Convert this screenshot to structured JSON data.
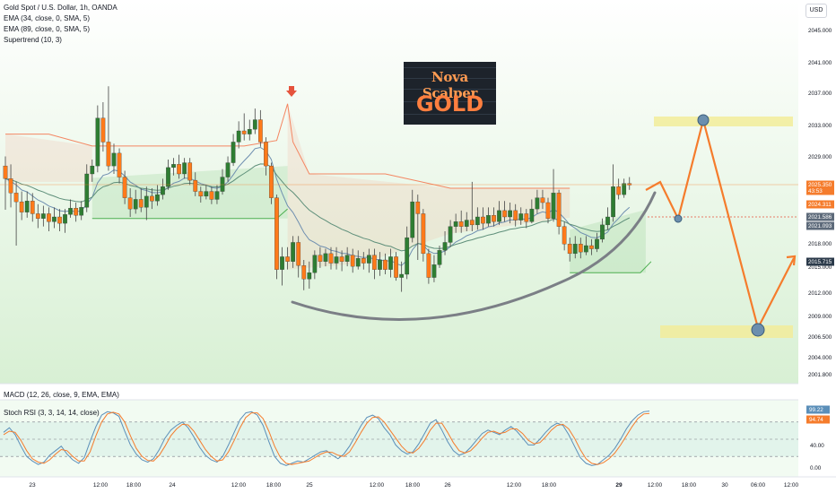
{
  "header": {
    "legend": [
      "Gold Spot / U.S. Dollar, 1h, OANDA",
      "EMA (34, close, 0, SMA, 5)",
      "EMA (89, close, 0, SMA, 5)",
      "Supertrend (10, 3)"
    ],
    "currency": "USD"
  },
  "badge": {
    "line1": "Nova Scalper",
    "line2": "GOLD"
  },
  "panes": {
    "macd_label": "MACD (12, 26, close, 9, EMA, EMA)",
    "stoch_label": "Stoch RSI (3, 3, 14, 14, close)"
  },
  "colors": {
    "up": "#26a69a",
    "down": "#ff7a1a",
    "up_fill": "#2e7d32",
    "supertrend_up": "#4caf50",
    "supertrend_down": "#f48662",
    "ema34": "#6f8fb0",
    "ema89": "#5e8f7a",
    "projection": "#f57c2c",
    "zone": "#f2ec9a",
    "stoch_k": "#5b8fb9",
    "stoch_d": "#f57c2c"
  },
  "chart_data": [
    {
      "type": "candlestick",
      "title": "Gold Spot / U.S. Dollar, 1h, OANDA",
      "y_ticks": [
        "2045.000",
        "2041.000",
        "2037.000",
        "2033.000",
        "2029.000",
        "2025.350",
        "2021.586",
        "2018.000",
        "2015.000",
        "2012.000",
        "2009.000",
        "2006.500",
        "2004.000",
        "2001.800"
      ],
      "x_ticks": [
        "23",
        "12:00",
        "18:00",
        "24",
        "12:00",
        "18:00",
        "25",
        "12:00",
        "18:00",
        "26",
        "12:00",
        "18:00",
        "29",
        "12:00",
        "18:00",
        "30",
        "06:00",
        "12:00"
      ],
      "price_tags": [
        {
          "value": "2025.350",
          "sub": "43:53",
          "color": "#f57c2c"
        },
        {
          "value": "2024.311",
          "sub": "",
          "color": "#f57c2c"
        },
        {
          "value": "2021.586",
          "sub": "",
          "color": "#5d6a7a"
        },
        {
          "value": "2021.093",
          "sub": "",
          "color": "#5d6a7a"
        },
        {
          "value": "2015.715",
          "sub": "",
          "color": "#2b3a4a"
        }
      ],
      "candles": [
        [
          2028.0,
          2026.4,
          2029.2,
          2022.5
        ],
        [
          2026.4,
          2024.6,
          2028.2,
          2022.8
        ],
        [
          2024.6,
          2023.5,
          2026.0,
          2018.0
        ],
        [
          2023.5,
          2022.2,
          2024.8,
          2021.2
        ],
        [
          2022.2,
          2023.6,
          2024.8,
          2021.5
        ],
        [
          2023.6,
          2022.0,
          2024.6,
          2021.0
        ],
        [
          2022.0,
          2021.4,
          2023.2,
          2020.2
        ],
        [
          2021.4,
          2022.0,
          2023.0,
          2020.4
        ],
        [
          2022.0,
          2021.0,
          2022.8,
          2019.8
        ],
        [
          2021.0,
          2021.6,
          2022.8,
          2020.2
        ],
        [
          2021.6,
          2020.8,
          2022.6,
          2019.8
        ],
        [
          2020.8,
          2021.9,
          2022.6,
          2019.6
        ],
        [
          2021.9,
          2022.7,
          2023.8,
          2021.5
        ],
        [
          2022.7,
          2021.8,
          2023.4,
          2021.0
        ],
        [
          2021.8,
          2022.8,
          2023.6,
          2021.2
        ],
        [
          2022.8,
          2027.0,
          2028.2,
          2022.2
        ],
        [
          2027.0,
          2028.0,
          2028.8,
          2026.0
        ],
        [
          2028.0,
          2034.0,
          2035.6,
          2027.2
        ],
        [
          2034.0,
          2031.0,
          2036.0,
          2029.8
        ],
        [
          2031.0,
          2028.0,
          2038.0,
          2027.4
        ],
        [
          2028.0,
          2029.6,
          2030.8,
          2027.0
        ],
        [
          2029.6,
          2026.6,
          2030.2,
          2025.8
        ],
        [
          2026.6,
          2024.0,
          2027.4,
          2023.2
        ],
        [
          2024.0,
          2022.6,
          2025.2,
          2021.6
        ],
        [
          2022.6,
          2023.8,
          2025.0,
          2022.0
        ],
        [
          2023.8,
          2022.8,
          2025.2,
          2022.2
        ],
        [
          2022.8,
          2024.2,
          2025.4,
          2021.2
        ],
        [
          2024.2,
          2023.6,
          2025.2,
          2022.6
        ],
        [
          2023.6,
          2024.4,
          2025.6,
          2023.0
        ],
        [
          2024.4,
          2025.4,
          2026.4,
          2023.8
        ],
        [
          2025.4,
          2027.8,
          2028.8,
          2025.0
        ],
        [
          2027.8,
          2028.2,
          2029.0,
          2026.8
        ],
        [
          2028.2,
          2027.0,
          2029.4,
          2026.4
        ],
        [
          2027.0,
          2028.4,
          2029.0,
          2026.4
        ],
        [
          2028.4,
          2026.2,
          2029.0,
          2025.6
        ],
        [
          2026.2,
          2024.8,
          2027.2,
          2024.2
        ],
        [
          2024.8,
          2024.2,
          2025.4,
          2023.4
        ],
        [
          2024.2,
          2024.8,
          2025.6,
          2023.8
        ],
        [
          2024.8,
          2023.8,
          2025.4,
          2023.2
        ],
        [
          2023.8,
          2024.8,
          2025.6,
          2023.2
        ],
        [
          2024.8,
          2026.6,
          2027.6,
          2024.4
        ],
        [
          2026.6,
          2028.4,
          2029.2,
          2026.0
        ],
        [
          2028.4,
          2031.0,
          2032.0,
          2028.0
        ],
        [
          2031.0,
          2032.4,
          2033.6,
          2030.2
        ],
        [
          2032.4,
          2032.0,
          2034.6,
          2031.2
        ],
        [
          2032.0,
          2032.6,
          2033.8,
          2031.2
        ],
        [
          2032.6,
          2033.8,
          2035.2,
          2032.0
        ],
        [
          2033.8,
          2031.0,
          2035.0,
          2030.4
        ],
        [
          2031.0,
          2028.0,
          2031.6,
          2026.8
        ],
        [
          2028.0,
          2024.0,
          2028.4,
          2023.2
        ],
        [
          2024.0,
          2015.0,
          2024.4,
          2013.8
        ],
        [
          2015.0,
          2016.6,
          2017.8,
          2013.0
        ],
        [
          2016.6,
          2016.0,
          2017.8,
          2015.0
        ],
        [
          2016.0,
          2018.4,
          2019.2,
          2015.2
        ],
        [
          2018.4,
          2015.5,
          2019.2,
          2014.0
        ],
        [
          2015.5,
          2013.8,
          2016.2,
          2012.4
        ],
        [
          2013.8,
          2014.6,
          2016.0,
          2012.6
        ],
        [
          2014.6,
          2016.8,
          2017.4,
          2013.8
        ],
        [
          2016.8,
          2016.0,
          2017.8,
          2015.2
        ],
        [
          2016.0,
          2017.0,
          2017.6,
          2015.4
        ],
        [
          2017.0,
          2015.8,
          2017.8,
          2015.0
        ],
        [
          2015.8,
          2016.6,
          2017.8,
          2015.0
        ],
        [
          2016.6,
          2016.0,
          2017.4,
          2014.8
        ],
        [
          2016.0,
          2016.8,
          2017.8,
          2015.4
        ],
        [
          2016.8,
          2015.4,
          2017.6,
          2014.6
        ],
        [
          2015.4,
          2016.4,
          2017.4,
          2015.0
        ],
        [
          2016.4,
          2015.8,
          2017.2,
          2015.0
        ],
        [
          2015.8,
          2016.8,
          2017.6,
          2014.6
        ],
        [
          2016.8,
          2015.0,
          2017.6,
          2013.8
        ],
        [
          2015.0,
          2016.2,
          2017.2,
          2014.2
        ],
        [
          2016.2,
          2015.0,
          2017.0,
          2014.4
        ],
        [
          2015.0,
          2016.6,
          2017.6,
          2014.0
        ],
        [
          2016.6,
          2014.0,
          2017.2,
          2013.6
        ],
        [
          2014.0,
          2014.4,
          2016.0,
          2012.2
        ],
        [
          2014.4,
          2019.0,
          2020.4,
          2013.8
        ],
        [
          2019.0,
          2023.5,
          2025.0,
          2018.4
        ],
        [
          2023.5,
          2022.0,
          2024.4,
          2016.2
        ],
        [
          2022.0,
          2017.0,
          2022.6,
          2016.0
        ],
        [
          2017.0,
          2014.0,
          2017.6,
          2013.2
        ],
        [
          2014.0,
          2015.6,
          2016.8,
          2013.4
        ],
        [
          2015.6,
          2017.4,
          2018.0,
          2015.2
        ],
        [
          2017.4,
          2018.4,
          2019.8,
          2016.8
        ],
        [
          2018.4,
          2020.4,
          2021.2,
          2017.8
        ],
        [
          2020.4,
          2021.0,
          2022.0,
          2019.6
        ],
        [
          2021.0,
          2020.4,
          2022.4,
          2019.6
        ],
        [
          2020.4,
          2021.2,
          2022.2,
          2019.8
        ],
        [
          2021.2,
          2020.6,
          2026.0,
          2019.8
        ],
        [
          2020.6,
          2021.6,
          2022.8,
          2020.0
        ],
        [
          2021.6,
          2020.8,
          2022.8,
          2020.0
        ],
        [
          2020.8,
          2021.8,
          2022.8,
          2020.4
        ],
        [
          2021.8,
          2021.0,
          2022.8,
          2020.4
        ],
        [
          2021.0,
          2022.4,
          2023.6,
          2020.6
        ],
        [
          2022.4,
          2021.6,
          2023.6,
          2021.0
        ],
        [
          2021.6,
          2022.4,
          2023.4,
          2020.8
        ],
        [
          2022.4,
          2021.2,
          2023.2,
          2020.4
        ],
        [
          2021.2,
          2022.0,
          2022.8,
          2020.6
        ],
        [
          2022.0,
          2021.0,
          2022.6,
          2020.2
        ],
        [
          2021.0,
          2022.6,
          2023.8,
          2020.8
        ],
        [
          2022.6,
          2024.0,
          2025.0,
          2022.0
        ],
        [
          2024.0,
          2023.4,
          2025.0,
          2022.6
        ],
        [
          2023.4,
          2021.4,
          2024.0,
          2020.8
        ],
        [
          2021.4,
          2024.6,
          2027.6,
          2021.0
        ],
        [
          2024.6,
          2020.4,
          2025.0,
          2019.4
        ],
        [
          2020.4,
          2018.2,
          2021.0,
          2017.4
        ],
        [
          2018.2,
          2017.0,
          2019.0,
          2016.0
        ],
        [
          2017.0,
          2018.2,
          2019.2,
          2016.4
        ],
        [
          2018.2,
          2017.2,
          2019.0,
          2016.4
        ],
        [
          2017.2,
          2018.0,
          2019.2,
          2016.8
        ],
        [
          2018.0,
          2017.6,
          2018.8,
          2016.8
        ],
        [
          2017.6,
          2018.8,
          2019.6,
          2017.2
        ],
        [
          2018.8,
          2020.6,
          2021.4,
          2018.4
        ],
        [
          2020.6,
          2021.6,
          2022.8,
          2020.0
        ],
        [
          2021.6,
          2025.4,
          2028.2,
          2021.0
        ],
        [
          2025.4,
          2024.4,
          2026.4,
          2023.8
        ],
        [
          2024.4,
          2025.8,
          2026.4,
          2024.0
        ],
        [
          2025.8,
          2025.6,
          2026.6,
          2025.0
        ]
      ]
    },
    {
      "type": "line",
      "title": "Stoch RSI (3, 3, 14, 14, close)",
      "ylim": [
        0,
        100
      ],
      "y_ticks": [
        "80.00",
        "40.00",
        "0.00"
      ],
      "value_tags": [
        {
          "value": "99.22",
          "color": "#5b8fb9"
        },
        {
          "value": "94.74",
          "color": "#f57c2c"
        }
      ],
      "series": [
        {
          "name": "K",
          "values": [
            62,
            70,
            58,
            38,
            20,
            12,
            6,
            10,
            22,
            30,
            38,
            24,
            14,
            8,
            18,
            46,
            72,
            92,
            98,
            96,
            90,
            64,
            40,
            24,
            14,
            10,
            16,
            32,
            52,
            66,
            74,
            80,
            70,
            54,
            36,
            22,
            14,
            10,
            20,
            40,
            62,
            84,
            96,
            98,
            92,
            74,
            46,
            20,
            8,
            4,
            8,
            12,
            10,
            16,
            22,
            28,
            30,
            22,
            16,
            24,
            38,
            56,
            74,
            88,
            92,
            86,
            70,
            58,
            40,
            30,
            24,
            28,
            42,
            60,
            78,
            84,
            66,
            46,
            30,
            22,
            26,
            36,
            48,
            60,
            66,
            62,
            58,
            66,
            72,
            64,
            52,
            40,
            40,
            50,
            62,
            72,
            78,
            74,
            58,
            38,
            18,
            8,
            4,
            6,
            14,
            22,
            34,
            50,
            68,
            82,
            92,
            98,
            99
          ]
        },
        {
          "name": "D",
          "values": [
            58,
            64,
            62,
            48,
            30,
            16,
            10,
            8,
            14,
            24,
            32,
            30,
            20,
            12,
            12,
            28,
            56,
            80,
            94,
            97,
            94,
            80,
            56,
            34,
            20,
            13,
            12,
            22,
            38,
            56,
            68,
            76,
            75,
            64,
            48,
            32,
            20,
            12,
            14,
            28,
            48,
            70,
            88,
            96,
            96,
            86,
            64,
            38,
            18,
            8,
            6,
            8,
            10,
            12,
            18,
            24,
            28,
            27,
            22,
            20,
            28,
            44,
            62,
            78,
            88,
            89,
            80,
            66,
            52,
            38,
            28,
            26,
            34,
            48,
            66,
            78,
            78,
            62,
            44,
            30,
            26,
            30,
            40,
            52,
            62,
            64,
            60,
            62,
            68,
            68,
            60,
            48,
            42,
            44,
            54,
            66,
            74,
            76,
            68,
            52,
            32,
            16,
            8,
            6,
            9,
            16,
            26,
            40,
            56,
            72,
            86,
            94,
            95
          ]
        }
      ]
    }
  ]
}
